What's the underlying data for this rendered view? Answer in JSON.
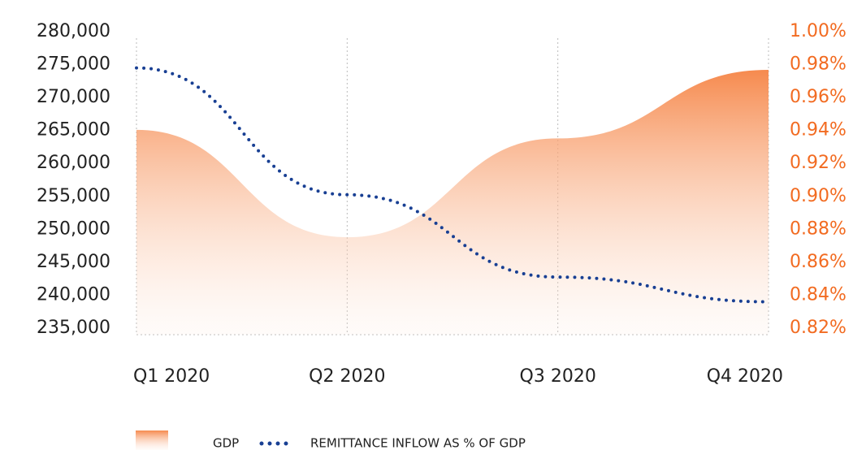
{
  "chart_data": {
    "type": "area-line",
    "categories": [
      "Q1 2020",
      "Q2 2020",
      "Q3 2020",
      "Q4 2020"
    ],
    "series": [
      {
        "name": "GDP",
        "color": "#f68a4e",
        "type": "area",
        "values": [
          265100,
          248800,
          263800,
          274200
        ]
      },
      {
        "name": "REMITTANCE INFLOW AS % OF GDP",
        "color": "#183f93",
        "type": "line",
        "axis": "y2",
        "values": [
          0.978,
          0.901,
          0.851,
          0.836
        ]
      }
    ],
    "ylim": [
      235000,
      280000
    ],
    "yticks": [
      {
        "value": 235000,
        "label": "235,000"
      },
      {
        "value": 240000,
        "label": "240,000"
      },
      {
        "value": 245000,
        "label": "245,000"
      },
      {
        "value": 250000,
        "label": "250,000"
      },
      {
        "value": 255000,
        "label": "255,000"
      },
      {
        "value": 260000,
        "label": "260,000"
      },
      {
        "value": 265000,
        "label": "265,000"
      },
      {
        "value": 270000,
        "label": "270,000"
      },
      {
        "value": 275000,
        "label": "275,000"
      },
      {
        "value": 280000,
        "label": "280,000"
      }
    ],
    "y2lim": [
      0.82,
      1.0
    ],
    "y2ticks": [
      {
        "value": 0.82,
        "label": "0.82%"
      },
      {
        "value": 0.84,
        "label": "0.84%"
      },
      {
        "value": 0.86,
        "label": "0.86%"
      },
      {
        "value": 0.88,
        "label": "0.88%"
      },
      {
        "value": 0.9,
        "label": "0.90%"
      },
      {
        "value": 0.92,
        "label": "0.92%"
      },
      {
        "value": 0.94,
        "label": "0.94%"
      },
      {
        "value": 0.96,
        "label": "0.96%"
      },
      {
        "value": 0.98,
        "label": "0.98%"
      },
      {
        "value": 1.0,
        "label": "1.00%"
      }
    ],
    "y2_color": "#f26b21",
    "grid": true
  }
}
